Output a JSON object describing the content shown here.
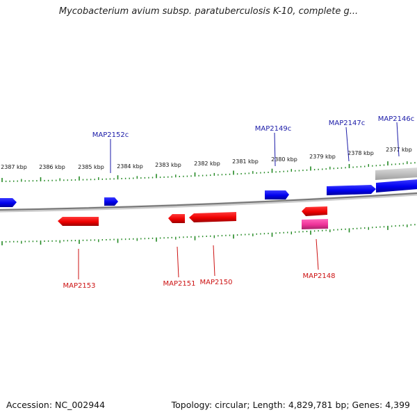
{
  "title": "Mycobacterium avium subsp. paratuberculosis K-10, complete g...",
  "accession": "Accession: NC_002944",
  "summary": "Topology: circular; Length: 4,829,781 bp; Genes: 4,399",
  "colors": {
    "forward_gene": "#0000ee",
    "reverse_gene": "#ee0000",
    "rna_gene": "#ee3399",
    "backbone": "#888888",
    "tick": "#228822",
    "forward_label": "#1a1aa8",
    "reverse_label": "#cc1111"
  },
  "scale": {
    "labels": [
      "2387 kbp",
      "2386 kbp",
      "2385 kbp",
      "2384 kbp",
      "2383 kbp",
      "2382 kbp",
      "2381 kbp",
      "2380 kbp",
      "2379 kbp",
      "2378 kbp",
      "2377 kbp"
    ]
  },
  "genes_forward": [
    {
      "name": "MAP2152c"
    },
    {
      "name": "MAP2149c"
    },
    {
      "name": "MAP2147c"
    },
    {
      "name": "MAP2146c"
    }
  ],
  "genes_reverse": [
    {
      "name": "MAP2153"
    },
    {
      "name": "MAP2151"
    },
    {
      "name": "MAP2150"
    },
    {
      "name": "MAP2148"
    }
  ]
}
